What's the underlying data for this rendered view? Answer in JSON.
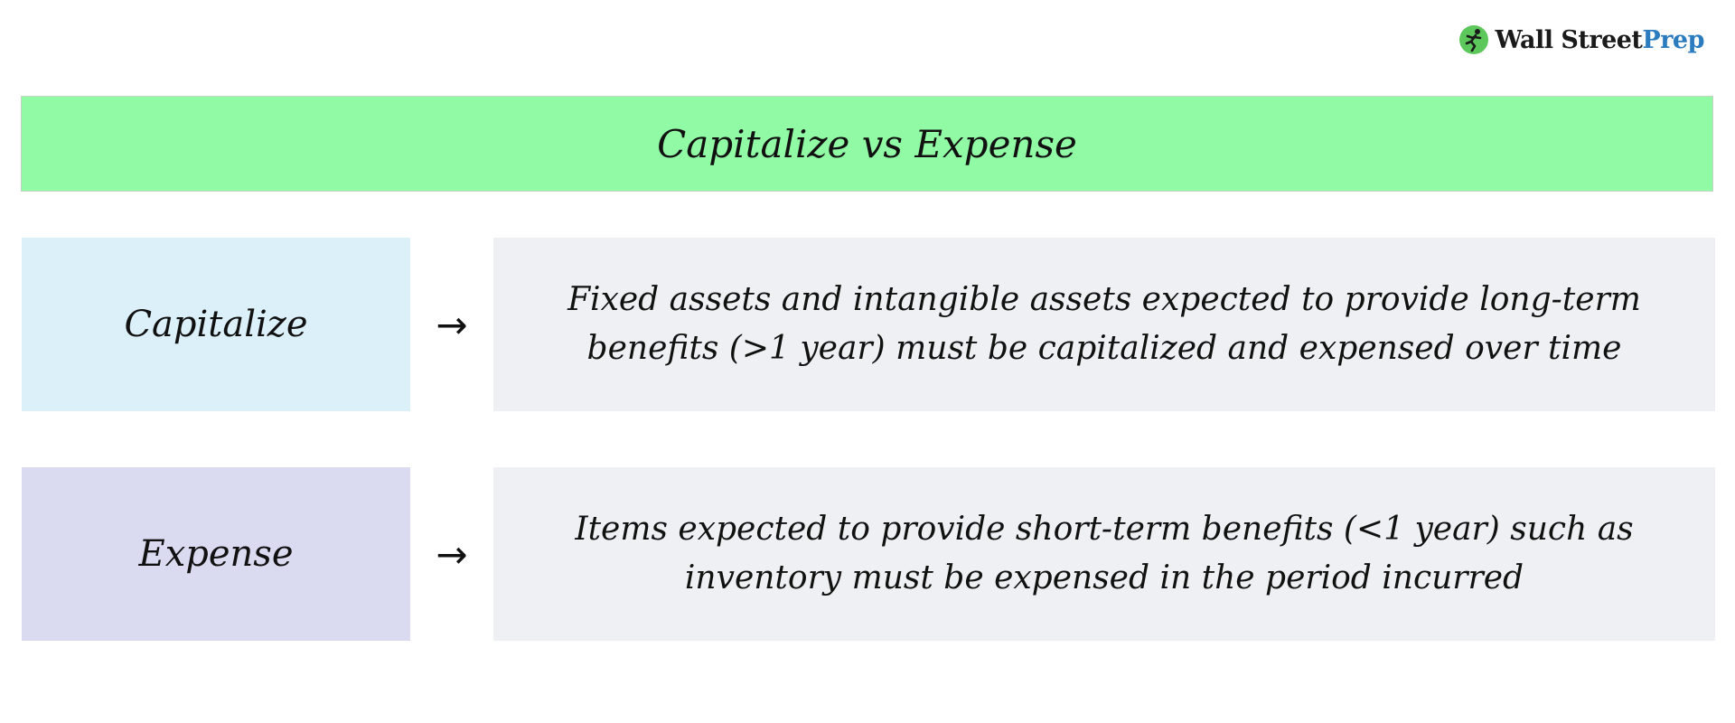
{
  "logo": {
    "icon": "running-figure-icon",
    "text_primary": "Wall Street",
    "text_accent": "Prep",
    "colors": {
      "mark": "#5cc85c",
      "primary": "#1a1a1a",
      "accent": "#2b7bbf"
    }
  },
  "title": "Capitalize vs Expense",
  "rows": [
    {
      "label": "Capitalize",
      "arrow": "→",
      "description": "Fixed assets and intangible assets expected to provide long-term benefits (>1 year) must be capitalized and expensed over time",
      "label_color": "#dcf0fa"
    },
    {
      "label": "Expense",
      "arrow": "→",
      "description": "Items expected to provide short-term benefits (<1 year) such as inventory must be expensed in the period incurred",
      "label_color": "#dadbf1"
    }
  ],
  "colors": {
    "title_bg": "#90fba4",
    "description_bg": "#eff0f3"
  }
}
